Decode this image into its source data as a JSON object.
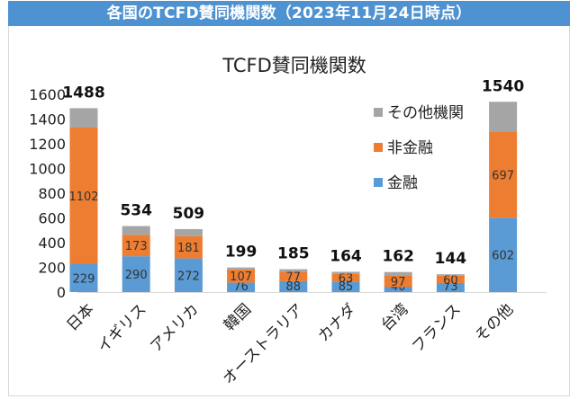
{
  "banner": {
    "title": "各国のTCFD賛同機関数（2023年11月24日時点）"
  },
  "colors": {
    "banner_bg": "#4f92d1",
    "frame_border": "#d9d9d9"
  },
  "chart_data": {
    "type": "bar",
    "stacked": true,
    "title": "TCFD賛同機関数",
    "xlabel": "",
    "ylabel": "",
    "ylim": [
      0,
      1600
    ],
    "yticks": [
      0,
      200,
      400,
      600,
      800,
      1000,
      1200,
      1400,
      1600
    ],
    "grid": false,
    "legend_position": "upper-right",
    "categories": [
      "日本",
      "イギリス",
      "アメリカ",
      "韓国",
      "オーストラリア",
      "カナダ",
      "台湾",
      "フランス",
      "その他"
    ],
    "series": [
      {
        "name": "金融",
        "color": "#5b9bd5",
        "values": [
          229,
          290,
          272,
          76,
          88,
          85,
          40,
          73,
          602
        ],
        "labels_shown": true
      },
      {
        "name": "非金融",
        "color": "#ed7d31",
        "values": [
          1102,
          173,
          181,
          107,
          77,
          63,
          97,
          60,
          697
        ],
        "labels_shown": true
      },
      {
        "name": "その他機関",
        "color": "#a5a5a5",
        "values": [
          157,
          71,
          56,
          16,
          20,
          16,
          25,
          11,
          241
        ],
        "labels_shown": false
      }
    ],
    "totals": [
      1488,
      534,
      509,
      199,
      185,
      164,
      162,
      144,
      1540
    ]
  }
}
